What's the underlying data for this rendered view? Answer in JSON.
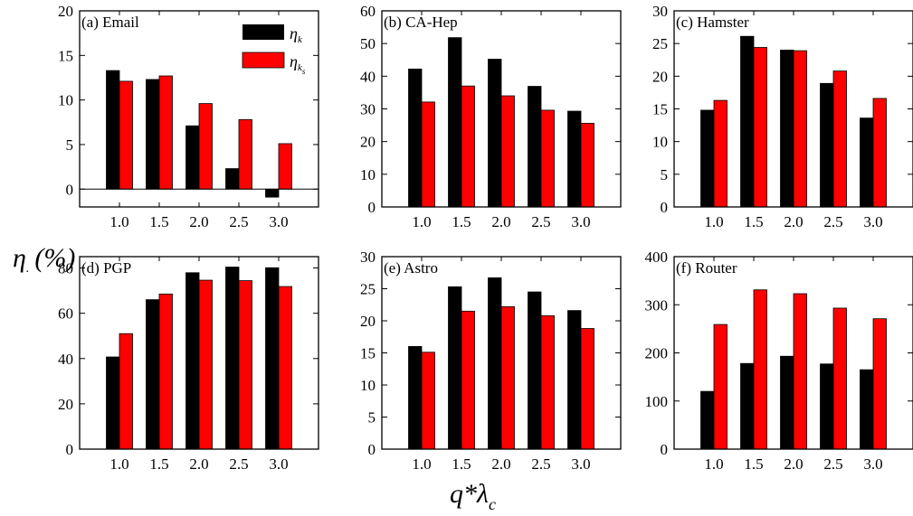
{
  "figure": {
    "ylabel_main": "η",
    "ylabel_dot": ".",
    "ylabel_unit": "(%)",
    "xlabel_main": "q*λ",
    "xlabel_sub": "c"
  },
  "legend": [
    {
      "symbol": "η",
      "sub": "k",
      "subsub": "",
      "color": "#000000"
    },
    {
      "symbol": "η",
      "sub": "k",
      "subsub": "s",
      "color": "#ff0000"
    }
  ],
  "colors": {
    "series_k": "#000000",
    "series_ks": "#ff0000"
  },
  "chart_data": [
    {
      "type": "bar",
      "panel_label": "(a) Email",
      "categories": [
        "1.0",
        "1.5",
        "2.0",
        "2.5",
        "3.0"
      ],
      "ylim": [
        -2,
        20
      ],
      "yticks": [
        0,
        5,
        10,
        15,
        20
      ],
      "series": [
        {
          "values": [
            13.3,
            12.3,
            7.1,
            2.3,
            -0.9
          ]
        },
        {
          "values": [
            12.1,
            12.7,
            9.6,
            7.8,
            5.1
          ]
        }
      ]
    },
    {
      "type": "bar",
      "panel_label": "(b) CA-Hep",
      "categories": [
        "1.0",
        "1.5",
        "2.0",
        "2.5",
        "3.0"
      ],
      "ylim": [
        0,
        60
      ],
      "yticks": [
        0,
        10,
        20,
        30,
        40,
        50,
        60
      ],
      "series": [
        {
          "values": [
            42.2,
            51.8,
            45.2,
            36.9,
            29.3
          ]
        },
        {
          "values": [
            32.1,
            37.0,
            34.0,
            29.6,
            25.6
          ]
        }
      ]
    },
    {
      "type": "bar",
      "panel_label": "(c) Hamster",
      "categories": [
        "1.0",
        "1.5",
        "2.0",
        "2.5",
        "3.0"
      ],
      "ylim": [
        0,
        30
      ],
      "yticks": [
        0,
        5,
        10,
        15,
        20,
        25,
        30
      ],
      "series": [
        {
          "values": [
            14.8,
            26.1,
            24.0,
            18.9,
            13.6
          ]
        },
        {
          "values": [
            16.3,
            24.4,
            23.9,
            20.8,
            16.6
          ]
        }
      ]
    },
    {
      "type": "bar",
      "panel_label": "(d) PGP",
      "categories": [
        "1.0",
        "1.5",
        "2.0",
        "2.5",
        "3.0"
      ],
      "ylim": [
        0,
        85
      ],
      "yticks": [
        0,
        20,
        40,
        60,
        80
      ],
      "series": [
        {
          "values": [
            40.7,
            66.0,
            77.9,
            80.4,
            80.1
          ]
        },
        {
          "values": [
            51.0,
            68.5,
            74.6,
            74.4,
            71.8
          ]
        }
      ]
    },
    {
      "type": "bar",
      "panel_label": "(e) Astro",
      "categories": [
        "1.0",
        "1.5",
        "2.0",
        "2.5",
        "3.0"
      ],
      "ylim": [
        0,
        30
      ],
      "yticks": [
        0,
        5,
        10,
        15,
        20,
        25,
        30
      ],
      "series": [
        {
          "values": [
            16.0,
            25.3,
            26.7,
            24.5,
            21.6
          ]
        },
        {
          "values": [
            15.1,
            21.5,
            22.2,
            20.8,
            18.8
          ]
        }
      ]
    },
    {
      "type": "bar",
      "panel_label": "(f) Router",
      "categories": [
        "1.0",
        "1.5",
        "2.0",
        "2.5",
        "3.0"
      ],
      "ylim": [
        0,
        400
      ],
      "yticks": [
        0,
        100,
        200,
        300,
        400
      ],
      "series": [
        {
          "values": [
            120,
            178,
            193,
            177,
            165
          ]
        },
        {
          "values": [
            259,
            331,
            323,
            293,
            271
          ]
        }
      ]
    }
  ]
}
